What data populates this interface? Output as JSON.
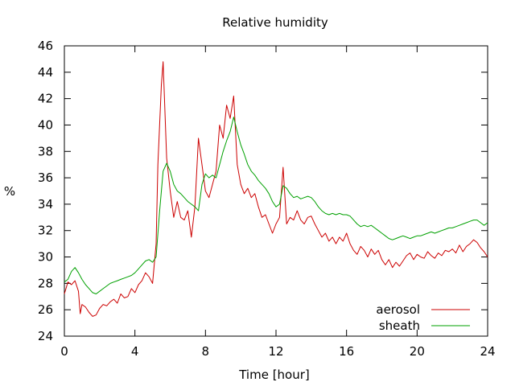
{
  "chart_data": {
    "type": "line",
    "title": "Relative humidity",
    "xlabel": "Time [hour]",
    "ylabel": "%",
    "xlim": [
      0,
      24
    ],
    "ylim": [
      24,
      46
    ],
    "xticks": [
      0,
      4,
      8,
      12,
      16,
      20,
      24
    ],
    "yticks": [
      24,
      26,
      28,
      30,
      32,
      34,
      36,
      38,
      40,
      42,
      44,
      46
    ],
    "grid": false,
    "legend": "bottom-right",
    "series": [
      {
        "name": "aerosol",
        "color": "#cc0000",
        "x": [
          0.0,
          0.2,
          0.4,
          0.6,
          0.8,
          0.9,
          1.0,
          1.2,
          1.4,
          1.6,
          1.8,
          2.0,
          2.2,
          2.4,
          2.6,
          2.8,
          3.0,
          3.2,
          3.4,
          3.6,
          3.8,
          4.0,
          4.2,
          4.4,
          4.6,
          4.8,
          5.0,
          5.2,
          5.3,
          5.5,
          5.6,
          5.8,
          6.0,
          6.2,
          6.4,
          6.6,
          6.8,
          7.0,
          7.2,
          7.4,
          7.6,
          7.8,
          8.0,
          8.2,
          8.4,
          8.6,
          8.8,
          9.0,
          9.2,
          9.4,
          9.6,
          9.8,
          10.0,
          10.2,
          10.4,
          10.6,
          10.8,
          11.0,
          11.2,
          11.4,
          11.6,
          11.8,
          12.0,
          12.2,
          12.4,
          12.6,
          12.8,
          13.0,
          13.2,
          13.4,
          13.6,
          13.8,
          14.0,
          14.2,
          14.4,
          14.6,
          14.8,
          15.0,
          15.2,
          15.4,
          15.6,
          15.8,
          16.0,
          16.2,
          16.4,
          16.6,
          16.8,
          17.0,
          17.2,
          17.4,
          17.6,
          17.8,
          18.0,
          18.2,
          18.4,
          18.6,
          18.8,
          19.0,
          19.2,
          19.4,
          19.6,
          19.8,
          20.0,
          20.2,
          20.4,
          20.6,
          20.8,
          21.0,
          21.2,
          21.4,
          21.6,
          21.8,
          22.0,
          22.2,
          22.4,
          22.6,
          22.8,
          23.0,
          23.2,
          23.4,
          23.6,
          23.8,
          24.0
        ],
        "values": [
          27.2,
          28.1,
          27.9,
          28.2,
          27.4,
          25.7,
          26.4,
          26.2,
          25.8,
          25.5,
          25.6,
          26.1,
          26.4,
          26.3,
          26.6,
          26.8,
          26.5,
          27.2,
          26.9,
          27.0,
          27.6,
          27.3,
          27.9,
          28.2,
          28.8,
          28.5,
          28.0,
          31.0,
          37.0,
          43.0,
          44.8,
          37.5,
          35.0,
          33.0,
          34.2,
          33.0,
          32.8,
          33.5,
          31.5,
          33.8,
          39.0,
          37.0,
          35.0,
          34.5,
          35.5,
          36.5,
          40.0,
          39.0,
          41.5,
          40.5,
          42.2,
          37.0,
          35.5,
          34.8,
          35.2,
          34.5,
          34.8,
          33.8,
          33.0,
          33.2,
          32.5,
          31.8,
          32.5,
          33.0,
          36.8,
          32.5,
          33.0,
          32.8,
          33.5,
          32.8,
          32.5,
          33.0,
          33.1,
          32.5,
          32.0,
          31.5,
          31.8,
          31.2,
          31.5,
          31.0,
          31.5,
          31.2,
          31.8,
          31.0,
          30.5,
          30.2,
          30.8,
          30.5,
          30.0,
          30.6,
          30.2,
          30.5,
          29.8,
          29.4,
          29.8,
          29.2,
          29.6,
          29.3,
          29.7,
          30.1,
          30.3,
          29.8,
          30.2,
          30.0,
          29.9,
          30.4,
          30.1,
          29.9,
          30.3,
          30.1,
          30.5,
          30.4,
          30.6,
          30.3,
          30.9,
          30.4,
          30.8,
          31.0,
          31.3,
          31.1,
          30.7,
          30.4,
          30.0
        ]
      },
      {
        "name": "sheath",
        "color": "#00a000",
        "x": [
          0.0,
          0.2,
          0.4,
          0.6,
          0.8,
          1.0,
          1.2,
          1.4,
          1.6,
          1.8,
          2.0,
          2.2,
          2.4,
          2.6,
          2.8,
          3.0,
          3.2,
          3.4,
          3.6,
          3.8,
          4.0,
          4.2,
          4.4,
          4.6,
          4.8,
          5.0,
          5.2,
          5.4,
          5.6,
          5.8,
          6.0,
          6.2,
          6.4,
          6.6,
          6.8,
          7.0,
          7.2,
          7.4,
          7.6,
          7.8,
          8.0,
          8.2,
          8.4,
          8.6,
          8.8,
          9.0,
          9.2,
          9.4,
          9.6,
          9.8,
          10.0,
          10.2,
          10.4,
          10.6,
          10.8,
          11.0,
          11.2,
          11.4,
          11.6,
          11.8,
          12.0,
          12.2,
          12.4,
          12.6,
          12.8,
          13.0,
          13.2,
          13.4,
          13.6,
          13.8,
          14.0,
          14.2,
          14.4,
          14.6,
          14.8,
          15.0,
          15.2,
          15.4,
          15.6,
          15.8,
          16.0,
          16.2,
          16.4,
          16.6,
          16.8,
          17.0,
          17.2,
          17.4,
          17.6,
          17.8,
          18.0,
          18.2,
          18.4,
          18.6,
          18.8,
          19.0,
          19.2,
          19.4,
          19.6,
          19.8,
          20.0,
          20.2,
          20.4,
          20.6,
          20.8,
          21.0,
          21.2,
          21.4,
          21.6,
          21.8,
          22.0,
          22.2,
          22.4,
          22.6,
          22.8,
          23.0,
          23.2,
          23.4,
          23.6,
          23.8,
          24.0
        ],
        "values": [
          28.1,
          28.3,
          28.9,
          29.2,
          28.8,
          28.3,
          27.9,
          27.6,
          27.3,
          27.2,
          27.4,
          27.6,
          27.8,
          28.0,
          28.1,
          28.2,
          28.3,
          28.4,
          28.5,
          28.6,
          28.8,
          29.1,
          29.4,
          29.7,
          29.8,
          29.6,
          30.0,
          33.5,
          36.5,
          37.1,
          36.5,
          35.5,
          35.0,
          34.8,
          34.5,
          34.2,
          34.0,
          33.8,
          33.5,
          35.5,
          36.3,
          36.0,
          36.2,
          36.0,
          37.0,
          38.0,
          38.8,
          39.5,
          40.6,
          39.5,
          38.5,
          37.8,
          37.0,
          36.5,
          36.2,
          35.8,
          35.5,
          35.2,
          34.8,
          34.2,
          33.8,
          34.0,
          35.4,
          35.2,
          34.8,
          34.5,
          34.6,
          34.4,
          34.5,
          34.6,
          34.5,
          34.2,
          33.8,
          33.5,
          33.3,
          33.2,
          33.3,
          33.2,
          33.3,
          33.2,
          33.2,
          33.1,
          32.8,
          32.5,
          32.3,
          32.4,
          32.3,
          32.4,
          32.2,
          32.0,
          31.8,
          31.6,
          31.4,
          31.3,
          31.4,
          31.5,
          31.6,
          31.5,
          31.4,
          31.5,
          31.6,
          31.6,
          31.7,
          31.8,
          31.9,
          31.8,
          31.9,
          32.0,
          32.1,
          32.2,
          32.2,
          32.3,
          32.4,
          32.5,
          32.6,
          32.7,
          32.8,
          32.8,
          32.6,
          32.4,
          32.6
        ]
      }
    ]
  }
}
